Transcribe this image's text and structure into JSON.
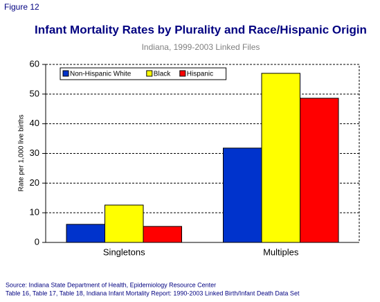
{
  "chart_data": {
    "type": "bar",
    "figure_label": "Figure 12",
    "title": "Infant Mortality Rates by Plurality and Race/Hispanic Origin",
    "subtitle": "Indiana, 1999-2003 Linked Files",
    "ylabel": "Rate per 1,000 live births",
    "categories": [
      "Singletons",
      "Multiples"
    ],
    "series": [
      {
        "name": "Non-Hispanic White",
        "color": "#0033cc",
        "values": [
          6.1,
          31.8
        ]
      },
      {
        "name": "Black",
        "color": "#ffff00",
        "values": [
          12.6,
          57.0
        ]
      },
      {
        "name": "Hispanic",
        "color": "#ff0000",
        "values": [
          5.4,
          48.6
        ]
      }
    ],
    "ylim": [
      0,
      60
    ],
    "yticks": [
      0,
      10,
      20,
      30,
      40,
      50,
      60
    ],
    "grid": true,
    "legend": "top-left",
    "notes": [
      "Source: Indiana State Department of Health, Epidemiology Resource Center",
      "Table 16, Table 17, Table 18, Indiana Infant Mortality Report: 1990-2003 Linked Birth/Infant Death Data Set"
    ]
  }
}
